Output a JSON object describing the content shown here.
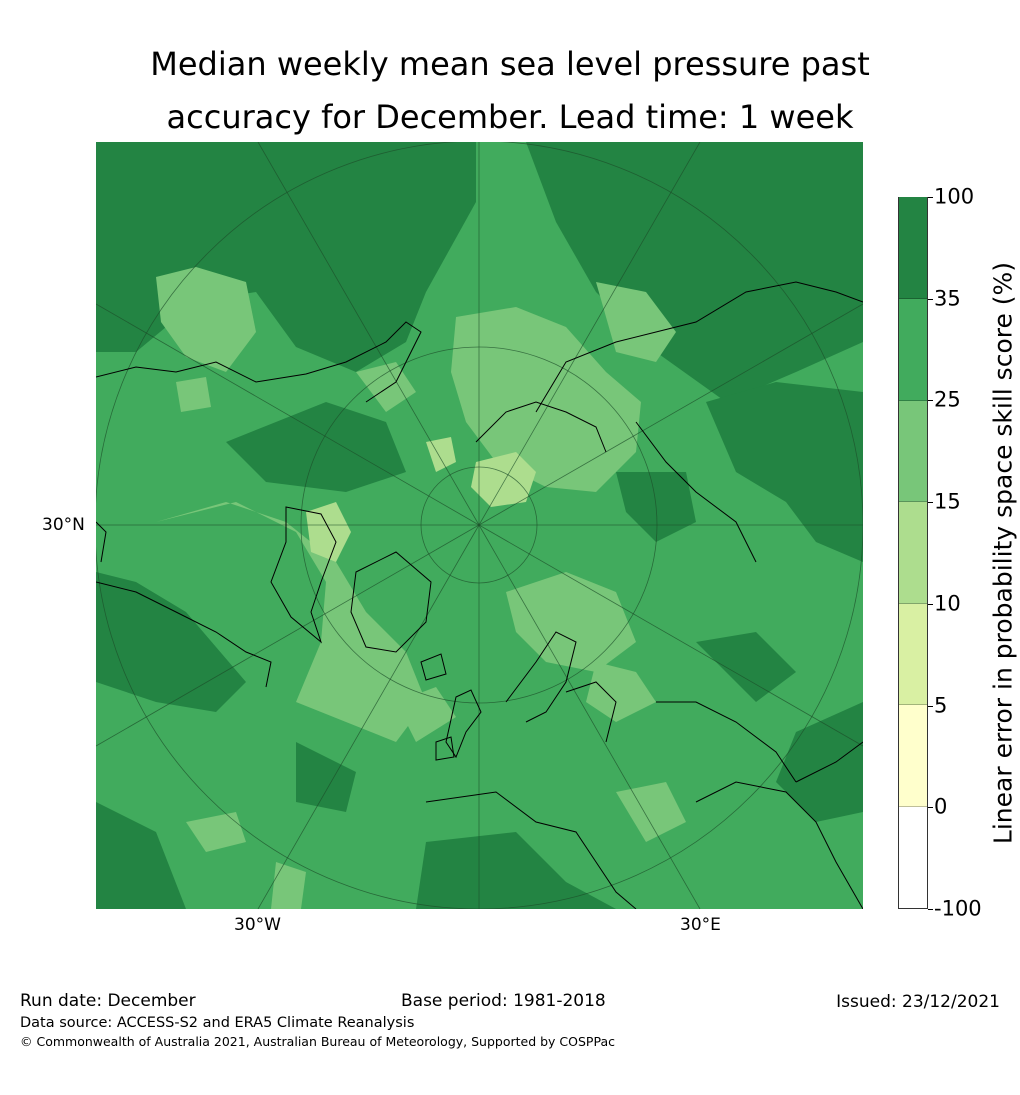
{
  "title": {
    "line1": "Median weekly mean sea level pressure past",
    "line2": "accuracy for December. Lead time: 1 week"
  },
  "map": {
    "projection": "north-polar-stereographic",
    "gridline_labels": {
      "latitude": "30°N",
      "longitude_west": "30°W",
      "longitude_east": "30°E"
    },
    "background_category": "25-35",
    "dominant_categories": [
      "35-100",
      "25-35",
      "15-25"
    ],
    "features": [
      "coastlines",
      "latitude circles",
      "meridians"
    ]
  },
  "colorbar": {
    "label": "Linear error in probability space skill score (%)",
    "bins": [
      {
        "range": "-100 to 0",
        "color": "#ffffff"
      },
      {
        "range": "0 to 5",
        "color": "#ffffcc"
      },
      {
        "range": "5 to 10",
        "color": "#d9f0a3"
      },
      {
        "range": "10 to 15",
        "color": "#addd8e"
      },
      {
        "range": "15 to 25",
        "color": "#78c679"
      },
      {
        "range": "25 to 35",
        "color": "#41ab5d"
      },
      {
        "range": "35 to 100",
        "color": "#238443"
      }
    ],
    "ticks": [
      "100",
      "35",
      "25",
      "15",
      "10",
      "5",
      "0",
      "-100"
    ]
  },
  "footer": {
    "run_date": "Run date: December",
    "base_period": "Base period: 1981-2018",
    "issued": "Issued: 23/12/2021",
    "data_source": "Data source: ACCESS-S2 and ERA5 Climate Reanalysis",
    "copyright": "© Commonwealth of Australia 2021, Australian Bureau of Meteorology, Supported by COSPPac"
  }
}
